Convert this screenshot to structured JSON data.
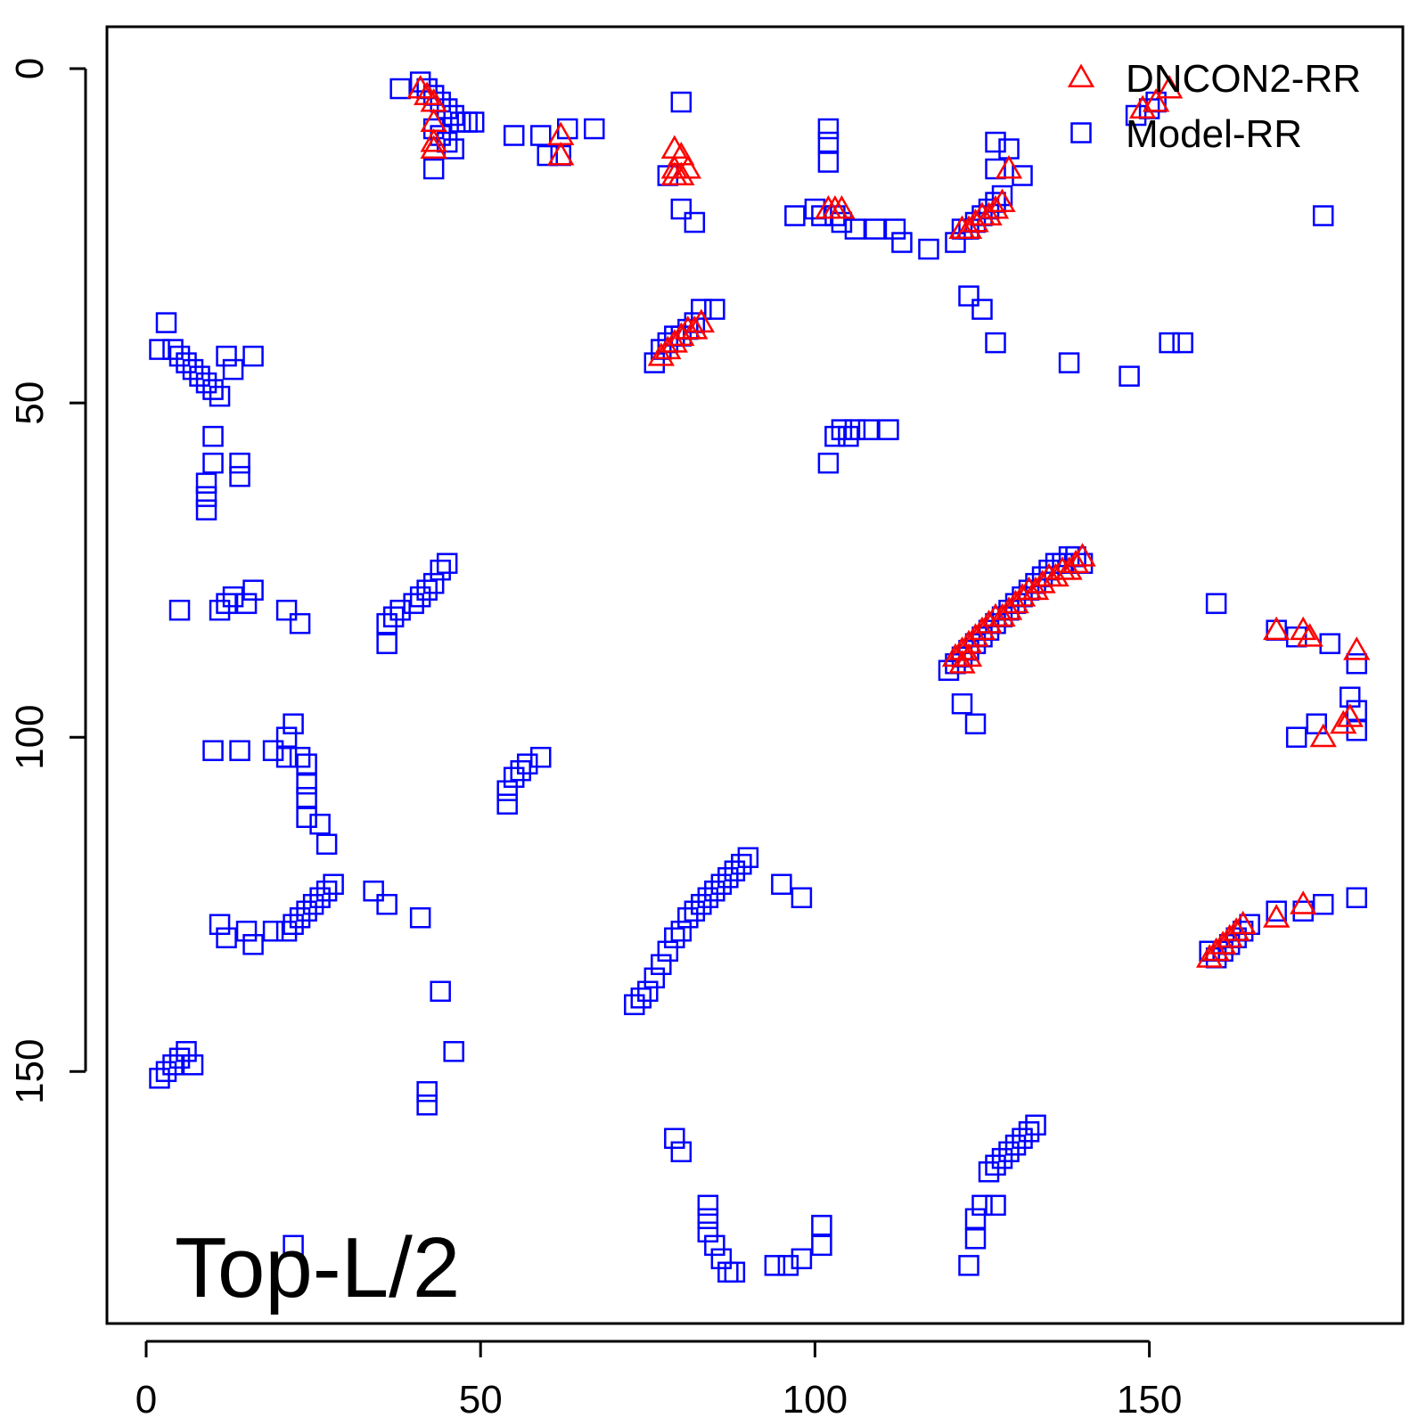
{
  "chart_data": {
    "type": "scatter",
    "title": "",
    "xlabel": "",
    "ylabel": "",
    "xlim": [
      -6,
      188
    ],
    "ylim": [
      -6,
      188
    ],
    "y_reversed": true,
    "x_ticks": [
      "0",
      "50",
      "100",
      "150"
    ],
    "x_tick_values": [
      0,
      50,
      100,
      150
    ],
    "y_ticks": [
      "0",
      "50",
      "100",
      "150"
    ],
    "y_tick_values": [
      0,
      50,
      100,
      150
    ],
    "grid": false,
    "legend_position": "top-right",
    "annotation": "Top-L/2",
    "series": [
      {
        "name": "DNCON2-RR",
        "marker": "triangle",
        "color": "#ff0000",
        "points": [
          [
            41,
            3
          ],
          [
            42,
            4
          ],
          [
            43,
            5
          ],
          [
            43,
            8
          ],
          [
            43,
            11
          ],
          [
            43,
            12
          ],
          [
            62,
            10
          ],
          [
            62,
            13
          ],
          [
            79,
            12
          ],
          [
            80,
            13
          ],
          [
            79,
            15
          ],
          [
            81,
            15
          ],
          [
            79,
            16
          ],
          [
            80,
            16
          ],
          [
            102,
            21
          ],
          [
            103,
            21
          ],
          [
            104,
            21
          ],
          [
            122,
            24
          ],
          [
            123,
            24
          ],
          [
            124,
            23
          ],
          [
            125,
            22
          ],
          [
            126,
            22
          ],
          [
            127,
            21
          ],
          [
            128,
            20
          ],
          [
            129,
            15
          ],
          [
            77,
            43
          ],
          [
            78,
            42
          ],
          [
            79,
            41
          ],
          [
            80,
            40
          ],
          [
            81,
            39
          ],
          [
            82,
            39
          ],
          [
            83,
            38
          ],
          [
            149,
            6
          ],
          [
            151,
            5
          ],
          [
            153,
            3
          ],
          [
            140,
            73
          ],
          [
            139,
            74
          ],
          [
            138,
            75
          ],
          [
            137,
            75
          ],
          [
            136,
            76
          ],
          [
            135,
            76
          ],
          [
            134,
            77
          ],
          [
            133,
            78
          ],
          [
            132,
            78
          ],
          [
            131,
            79
          ],
          [
            130,
            80
          ],
          [
            129,
            81
          ],
          [
            128,
            82
          ],
          [
            127,
            82
          ],
          [
            126,
            83
          ],
          [
            125,
            84
          ],
          [
            124,
            85
          ],
          [
            123,
            86
          ],
          [
            122,
            87
          ],
          [
            121,
            88
          ],
          [
            122,
            89
          ],
          [
            123,
            88
          ],
          [
            169,
            84
          ],
          [
            173,
            84
          ],
          [
            174,
            85
          ],
          [
            181,
            87
          ],
          [
            179,
            98
          ],
          [
            180,
            97
          ],
          [
            176,
            100
          ],
          [
            159,
            133
          ],
          [
            160,
            132
          ],
          [
            161,
            131
          ],
          [
            162,
            130
          ],
          [
            163,
            129
          ],
          [
            164,
            128
          ],
          [
            169,
            127
          ],
          [
            173,
            125
          ]
        ]
      },
      {
        "name": "Model-RR",
        "marker": "square",
        "color": "#0000ff",
        "points": [
          [
            38,
            3
          ],
          [
            41,
            2
          ],
          [
            42,
            3
          ],
          [
            43,
            4
          ],
          [
            44,
            5
          ],
          [
            45,
            6
          ],
          [
            46,
            7
          ],
          [
            47,
            8
          ],
          [
            48,
            8
          ],
          [
            49,
            8
          ],
          [
            43,
            9
          ],
          [
            44,
            10
          ],
          [
            45,
            11
          ],
          [
            46,
            12
          ],
          [
            43,
            15
          ],
          [
            55,
            10
          ],
          [
            59,
            10
          ],
          [
            60,
            13
          ],
          [
            62,
            13
          ],
          [
            63,
            9
          ],
          [
            67,
            9
          ],
          [
            78,
            16
          ],
          [
            80,
            5
          ],
          [
            80,
            21
          ],
          [
            82,
            23
          ],
          [
            97,
            22
          ],
          [
            100,
            21
          ],
          [
            101,
            22
          ],
          [
            102,
            9
          ],
          [
            102,
            11
          ],
          [
            102,
            14
          ],
          [
            103,
            22
          ],
          [
            104,
            23
          ],
          [
            106,
            24
          ],
          [
            109,
            24
          ],
          [
            112,
            24
          ],
          [
            113,
            26
          ],
          [
            117,
            27
          ],
          [
            121,
            26
          ],
          [
            122,
            24
          ],
          [
            123,
            24
          ],
          [
            124,
            23
          ],
          [
            125,
            22
          ],
          [
            126,
            21
          ],
          [
            127,
            20
          ],
          [
            128,
            19
          ],
          [
            127,
            11
          ],
          [
            127,
            15
          ],
          [
            129,
            12
          ],
          [
            131,
            16
          ],
          [
            123,
            34
          ],
          [
            125,
            36
          ],
          [
            127,
            41
          ],
          [
            3,
            38
          ],
          [
            2,
            42
          ],
          [
            4,
            42
          ],
          [
            5,
            43
          ],
          [
            6,
            44
          ],
          [
            7,
            45
          ],
          [
            8,
            46
          ],
          [
            9,
            47
          ],
          [
            10,
            48
          ],
          [
            11,
            49
          ],
          [
            12,
            43
          ],
          [
            13,
            45
          ],
          [
            16,
            43
          ],
          [
            10,
            55
          ],
          [
            10,
            59
          ],
          [
            9,
            62
          ],
          [
            9,
            64
          ],
          [
            14,
            59
          ],
          [
            14,
            61
          ],
          [
            9,
            66
          ],
          [
            76,
            44
          ],
          [
            77,
            42
          ],
          [
            78,
            41
          ],
          [
            79,
            40
          ],
          [
            80,
            40
          ],
          [
            81,
            39
          ],
          [
            82,
            38
          ],
          [
            83,
            36
          ],
          [
            85,
            36
          ],
          [
            138,
            44
          ],
          [
            147,
            46
          ],
          [
            153,
            41
          ],
          [
            155,
            41
          ],
          [
            150,
            6
          ],
          [
            151,
            5
          ],
          [
            148,
            7
          ],
          [
            176,
            22
          ],
          [
            103,
            55
          ],
          [
            104,
            54
          ],
          [
            105,
            55
          ],
          [
            106,
            54
          ],
          [
            108,
            54
          ],
          [
            111,
            54
          ],
          [
            102,
            59
          ],
          [
            5,
            81
          ],
          [
            11,
            81
          ],
          [
            12,
            80
          ],
          [
            13,
            79
          ],
          [
            15,
            80
          ],
          [
            16,
            78
          ],
          [
            21,
            81
          ],
          [
            23,
            83
          ],
          [
            36,
            83
          ],
          [
            37,
            82
          ],
          [
            38,
            81
          ],
          [
            40,
            80
          ],
          [
            41,
            79
          ],
          [
            42,
            78
          ],
          [
            43,
            77
          ],
          [
            44,
            75
          ],
          [
            45,
            74
          ],
          [
            36,
            86
          ],
          [
            120,
            90
          ],
          [
            121,
            89
          ],
          [
            122,
            88
          ],
          [
            123,
            87
          ],
          [
            124,
            86
          ],
          [
            125,
            85
          ],
          [
            126,
            84
          ],
          [
            127,
            83
          ],
          [
            128,
            82
          ],
          [
            129,
            81
          ],
          [
            130,
            80
          ],
          [
            131,
            79
          ],
          [
            132,
            78
          ],
          [
            133,
            77
          ],
          [
            134,
            76
          ],
          [
            135,
            75
          ],
          [
            136,
            74
          ],
          [
            137,
            74
          ],
          [
            138,
            73
          ],
          [
            139,
            73
          ],
          [
            140,
            74
          ],
          [
            122,
            95
          ],
          [
            124,
            98
          ],
          [
            160,
            80
          ],
          [
            169,
            84
          ],
          [
            172,
            85
          ],
          [
            177,
            86
          ],
          [
            181,
            89
          ],
          [
            180,
            94
          ],
          [
            181,
            96
          ],
          [
            175,
            98
          ],
          [
            181,
            99
          ],
          [
            172,
            100
          ],
          [
            10,
            102
          ],
          [
            14,
            102
          ],
          [
            19,
            102
          ],
          [
            21,
            100
          ],
          [
            22,
            98
          ],
          [
            21,
            103
          ],
          [
            23,
            103
          ],
          [
            24,
            104
          ],
          [
            24,
            107
          ],
          [
            24,
            109
          ],
          [
            24,
            112
          ],
          [
            26,
            113
          ],
          [
            27,
            116
          ],
          [
            21,
            129
          ],
          [
            22,
            128
          ],
          [
            23,
            127
          ],
          [
            24,
            126
          ],
          [
            25,
            125
          ],
          [
            26,
            124
          ],
          [
            27,
            123
          ],
          [
            28,
            122
          ],
          [
            11,
            128
          ],
          [
            12,
            130
          ],
          [
            15,
            129
          ],
          [
            16,
            131
          ],
          [
            19,
            129
          ],
          [
            34,
            123
          ],
          [
            36,
            125
          ],
          [
            41,
            127
          ],
          [
            44,
            138
          ],
          [
            46,
            147
          ],
          [
            42,
            153
          ],
          [
            42,
            155
          ],
          [
            54,
            110
          ],
          [
            54,
            108
          ],
          [
            55,
            106
          ],
          [
            56,
            105
          ],
          [
            57,
            104
          ],
          [
            59,
            103
          ],
          [
            73,
            140
          ],
          [
            74,
            139
          ],
          [
            75,
            138
          ],
          [
            76,
            136
          ],
          [
            77,
            134
          ],
          [
            78,
            132
          ],
          [
            79,
            130
          ],
          [
            80,
            129
          ],
          [
            81,
            127
          ],
          [
            82,
            126
          ],
          [
            83,
            125
          ],
          [
            84,
            124
          ],
          [
            85,
            123
          ],
          [
            86,
            122
          ],
          [
            87,
            121
          ],
          [
            88,
            120
          ],
          [
            89,
            119
          ],
          [
            90,
            118
          ],
          [
            95,
            122
          ],
          [
            98,
            124
          ],
          [
            2,
            151
          ],
          [
            3,
            150
          ],
          [
            4,
            149
          ],
          [
            5,
            148
          ],
          [
            6,
            147
          ],
          [
            7,
            149
          ],
          [
            159,
            132
          ],
          [
            160,
            133
          ],
          [
            161,
            132
          ],
          [
            162,
            131
          ],
          [
            163,
            130
          ],
          [
            164,
            129
          ],
          [
            165,
            128
          ],
          [
            169,
            126
          ],
          [
            173,
            126
          ],
          [
            176,
            125
          ],
          [
            181,
            124
          ],
          [
            79,
            160
          ],
          [
            84,
            170
          ],
          [
            84,
            172
          ],
          [
            84,
            174
          ],
          [
            85,
            176
          ],
          [
            86,
            178
          ],
          [
            87,
            180
          ],
          [
            88,
            180
          ],
          [
            94,
            179
          ],
          [
            96,
            179
          ],
          [
            98,
            178
          ],
          [
            101,
            173
          ],
          [
            101,
            176
          ],
          [
            123,
            179
          ],
          [
            124,
            175
          ],
          [
            124,
            172
          ],
          [
            125,
            170
          ],
          [
            126,
            165
          ],
          [
            127,
            164
          ],
          [
            128,
            163
          ],
          [
            129,
            162
          ],
          [
            130,
            161
          ],
          [
            131,
            160
          ],
          [
            132,
            159
          ],
          [
            133,
            158
          ],
          [
            127,
            170
          ],
          [
            22,
            176
          ],
          [
            80,
            162
          ]
        ]
      }
    ]
  }
}
